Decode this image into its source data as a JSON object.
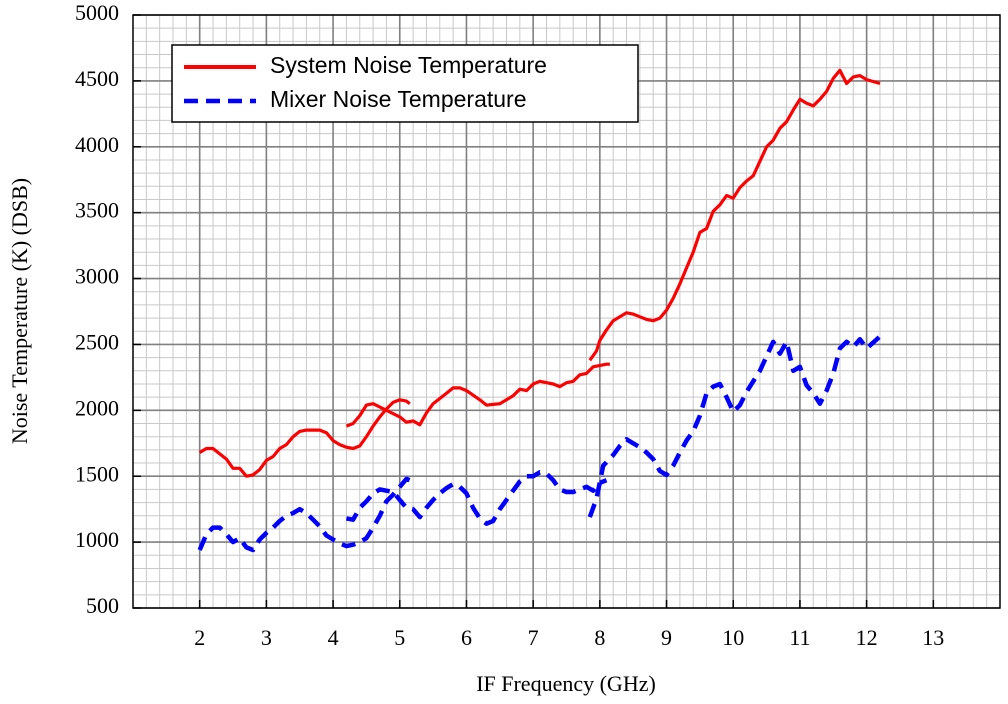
{
  "chart_data": {
    "type": "line",
    "x_label": "IF Frequency (GHz)",
    "y_label": "Noise Temperature (K) (DSB)",
    "xlim": [
      1,
      14
    ],
    "xticks": [
      2,
      3,
      4,
      5,
      6,
      7,
      8,
      9,
      10,
      11,
      12,
      13
    ],
    "ylim": [
      500,
      5000
    ],
    "yticks": [
      500,
      1000,
      1500,
      2000,
      2500,
      3000,
      3500,
      4000,
      4500,
      5000
    ],
    "grid": true,
    "legend": "upper left",
    "series": [
      {
        "name": "System Noise Temperature",
        "color": "#ff0000",
        "style": "solid",
        "x": [
          2.0,
          2.1,
          2.2,
          2.4,
          2.5,
          2.6,
          2.7,
          2.8,
          2.9,
          3.0,
          3.1,
          3.2,
          3.3,
          3.4,
          3.5,
          3.6,
          3.7,
          3.8,
          3.9,
          4.0,
          4.1,
          4.2,
          4.3,
          4.4,
          4.5,
          4.6,
          4.7,
          4.8,
          4.9,
          5.0,
          5.1,
          5.15,
          null,
          4.2,
          4.3,
          4.4,
          4.5,
          4.6,
          4.8,
          5.0,
          5.1,
          5.2,
          5.3,
          5.4,
          5.5,
          5.7,
          5.8,
          5.9,
          6.0,
          6.2,
          6.3,
          6.5,
          6.6,
          6.7,
          6.8,
          6.9,
          7.0,
          7.1,
          7.3,
          7.4,
          7.5,
          7.6,
          7.7,
          7.8,
          7.9,
          8.1,
          8.15,
          null,
          7.85,
          7.95,
          8.0,
          8.1,
          8.2,
          8.3,
          8.4,
          8.5,
          8.6,
          8.7,
          8.8,
          8.9,
          9.0,
          9.1,
          9.2,
          9.3,
          9.4,
          9.5,
          9.6,
          9.7,
          9.8,
          9.9,
          10.0,
          10.1,
          10.2,
          10.3,
          10.4,
          10.5,
          10.6,
          10.7,
          10.8,
          10.9,
          11.0,
          11.1,
          11.2,
          11.3,
          11.4,
          11.5,
          11.6,
          11.7,
          11.8,
          11.9,
          12.0,
          12.2
        ],
        "values": [
          1680,
          1710,
          1710,
          1630,
          1560,
          1560,
          1500,
          1510,
          1550,
          1620,
          1650,
          1710,
          1740,
          1800,
          1840,
          1850,
          1850,
          1850,
          1830,
          1770,
          1740,
          1720,
          1710,
          1730,
          1800,
          1880,
          1950,
          2010,
          2060,
          2080,
          2070,
          2050,
          null,
          1880,
          1900,
          1960,
          2040,
          2050,
          2000,
          1950,
          1910,
          1920,
          1890,
          1980,
          2050,
          2130,
          2170,
          2170,
          2150,
          2080,
          2040,
          2050,
          2080,
          2110,
          2160,
          2150,
          2200,
          2220,
          2200,
          2180,
          2210,
          2220,
          2270,
          2280,
          2330,
          2350,
          2350,
          null,
          2380,
          2450,
          2530,
          2610,
          2680,
          2710,
          2740,
          2730,
          2710,
          2690,
          2680,
          2700,
          2760,
          2850,
          2960,
          3080,
          3200,
          3350,
          3380,
          3510,
          3560,
          3630,
          3610,
          3690,
          3740,
          3780,
          3890,
          4000,
          4050,
          4140,
          4190,
          4280,
          4360,
          4330,
          4310,
          4360,
          4420,
          4520,
          4580,
          4480,
          4530,
          4540,
          4510,
          4480
        ]
      },
      {
        "name": "Mixer Noise Temperature",
        "color": "#0000ff",
        "style": "dashed",
        "x": [
          2.0,
          2.1,
          2.2,
          2.3,
          2.4,
          2.5,
          2.6,
          2.7,
          2.8,
          2.9,
          3.0,
          3.1,
          3.2,
          3.3,
          3.4,
          3.5,
          3.6,
          3.7,
          3.8,
          3.9,
          4.0,
          4.1,
          4.2,
          4.3,
          4.4,
          4.5,
          4.6,
          4.7,
          4.8,
          4.9,
          5.0,
          5.1,
          5.15,
          null,
          4.2,
          4.3,
          4.4,
          4.5,
          4.6,
          4.7,
          4.8,
          4.9,
          5.0,
          5.1,
          5.2,
          5.3,
          5.4,
          5.5,
          5.6,
          5.7,
          5.8,
          5.9,
          6.0,
          6.1,
          6.2,
          6.3,
          6.4,
          6.5,
          6.6,
          6.7,
          6.8,
          6.9,
          7.0,
          7.1,
          7.2,
          7.3,
          7.4,
          7.5,
          7.6,
          7.7,
          7.8,
          7.9,
          8.0,
          8.1,
          null,
          7.85,
          7.95,
          8.05,
          8.2,
          8.3,
          8.4,
          8.5,
          8.6,
          8.7,
          8.8,
          8.9,
          9.0,
          9.1,
          9.2,
          9.3,
          9.4,
          9.5,
          9.6,
          9.7,
          9.8,
          9.9,
          10.0,
          10.1,
          10.2,
          10.3,
          10.4,
          10.5,
          10.6,
          10.7,
          10.8,
          10.9,
          11.0,
          11.1,
          11.2,
          11.3,
          11.4,
          11.5,
          11.6,
          11.7,
          11.8,
          11.9,
          12.0,
          12.2
        ],
        "values": [
          940,
          1060,
          1110,
          1110,
          1060,
          1000,
          1030,
          960,
          940,
          1020,
          1070,
          1110,
          1160,
          1200,
          1220,
          1250,
          1220,
          1170,
          1120,
          1050,
          1020,
          990,
          970,
          980,
          1000,
          1030,
          1110,
          1200,
          1310,
          1360,
          1420,
          1480,
          1470,
          null,
          1180,
          1170,
          1260,
          1310,
          1370,
          1400,
          1390,
          1380,
          1320,
          1260,
          1250,
          1190,
          1260,
          1320,
          1370,
          1410,
          1440,
          1420,
          1370,
          1260,
          1180,
          1140,
          1160,
          1250,
          1320,
          1390,
          1460,
          1500,
          1500,
          1530,
          1520,
          1470,
          1400,
          1380,
          1380,
          1400,
          1420,
          1390,
          1450,
          1470,
          null,
          1190,
          1330,
          1580,
          1660,
          1730,
          1780,
          1750,
          1720,
          1680,
          1630,
          1540,
          1510,
          1580,
          1680,
          1770,
          1840,
          1960,
          2130,
          2180,
          2200,
          2100,
          1990,
          2040,
          2140,
          2220,
          2300,
          2410,
          2520,
          2430,
          2520,
          2300,
          2330,
          2190,
          2130,
          2050,
          2150,
          2280,
          2470,
          2520,
          2480,
          2540,
          2470,
          2560
        ]
      }
    ]
  }
}
